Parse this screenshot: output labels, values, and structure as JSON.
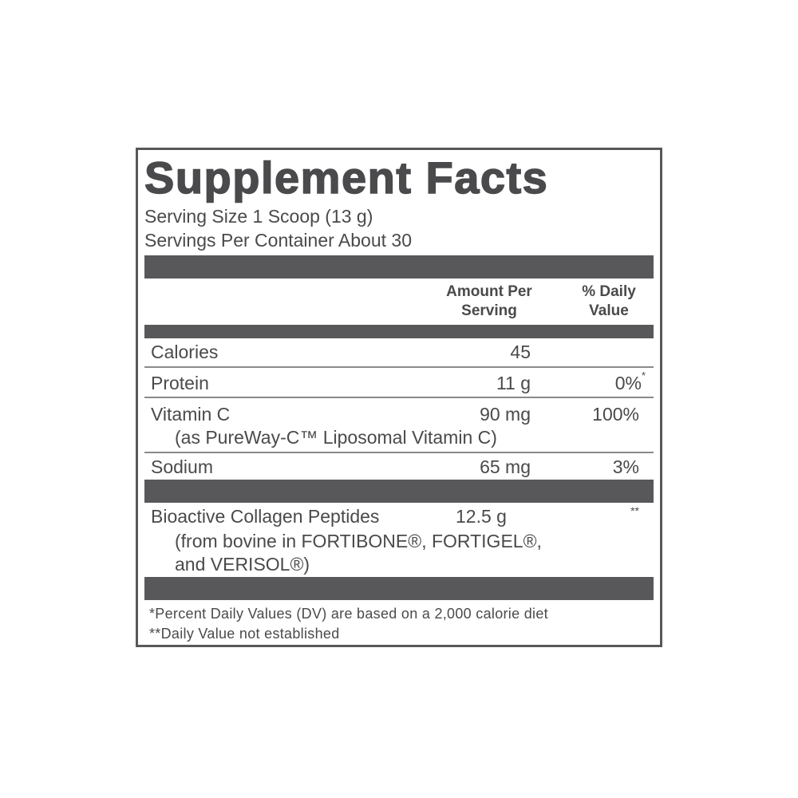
{
  "label": {
    "title": "Supplement Facts",
    "serving_size": "Serving Size 1 Scoop (13 g)",
    "servings_per_container": "Servings Per Container About 30",
    "columns": {
      "amount": [
        "Amount Per",
        "Serving"
      ],
      "daily_value": [
        "% Daily",
        "Value"
      ]
    },
    "rows": [
      {
        "name": "Calories",
        "amount": "45"
      },
      {
        "name": "Protein",
        "amount": "11 g",
        "daily_value": "0%",
        "note": "*"
      },
      {
        "name": "Vitamin C",
        "amount": "90 mg",
        "daily_value": "100%",
        "detail": [
          "(as PureWay-C™ Liposomal Vitamin C)"
        ]
      },
      {
        "name": "Sodium",
        "amount": "65 mg",
        "daily_value": "3%"
      },
      {
        "name": "Bioactive Collagen Peptides",
        "amount": "12.5 g",
        "note": "**",
        "detail": [
          "(from bovine in FORTIBONE®, FORTIGEL®,",
          "and VERISOL®)"
        ]
      }
    ],
    "footnotes": [
      "*Percent Daily Values (DV) are based on a 2,000 calorie diet",
      "**Daily Value not established"
    ]
  }
}
